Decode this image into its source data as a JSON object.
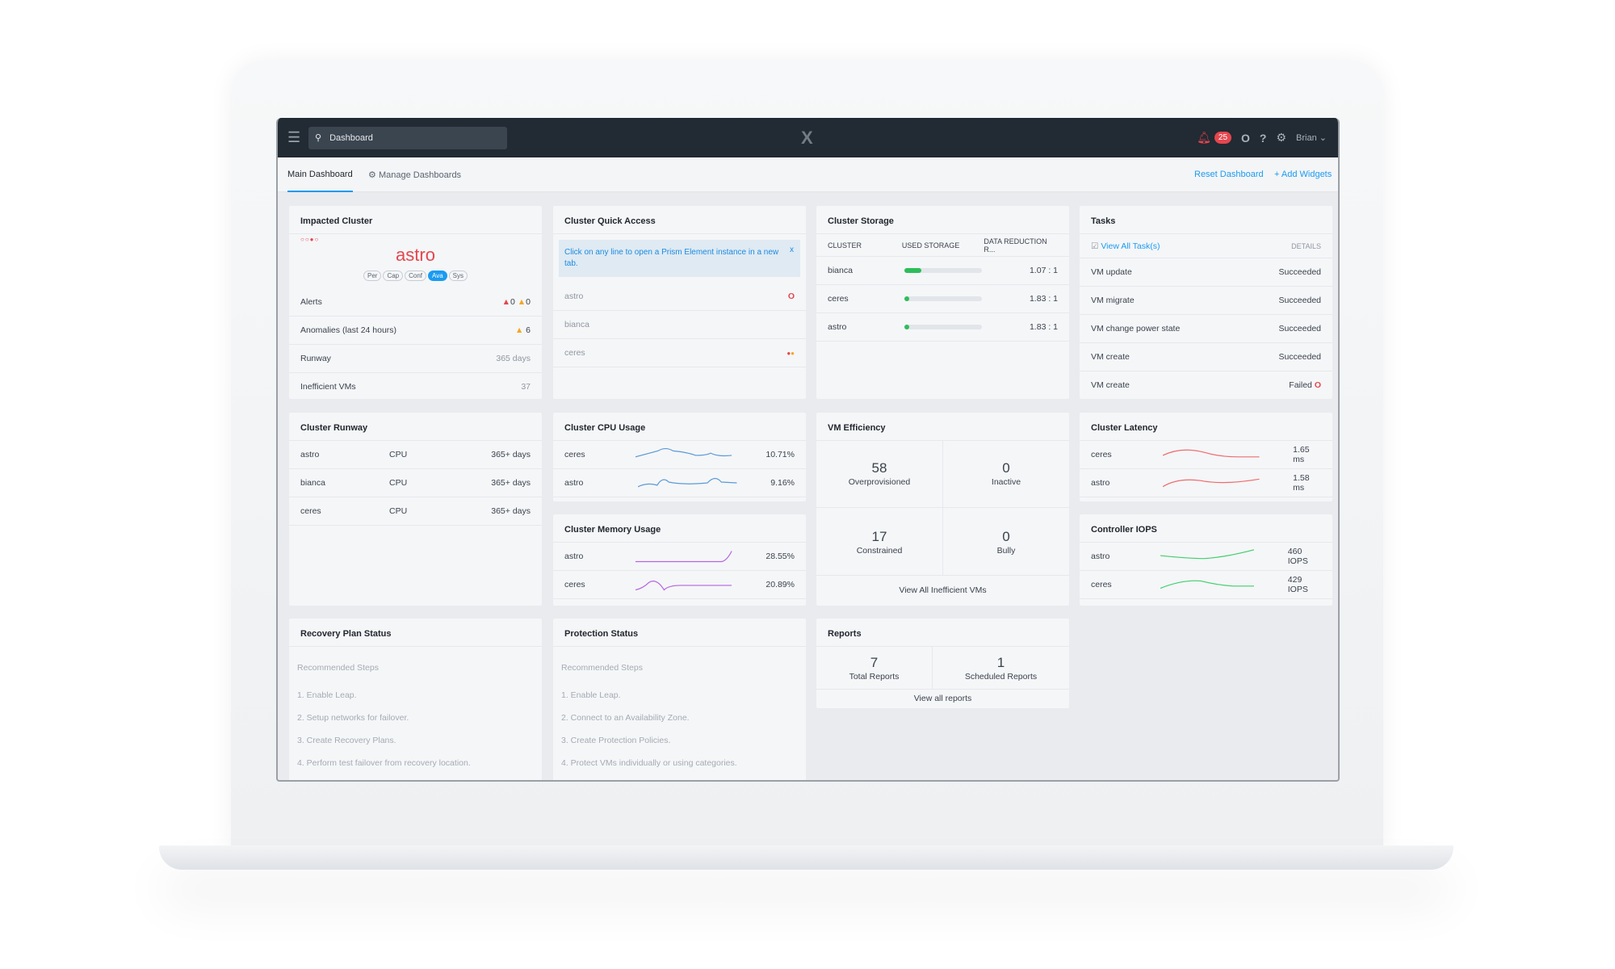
{
  "topbar": {
    "search_value": "Dashboard",
    "logo": "X",
    "alert_count": "25",
    "user": "Brian"
  },
  "tabs": {
    "main": "Main Dashboard",
    "manage": "Manage Dashboards",
    "reset": "Reset Dashboard",
    "add": "Add Widgets"
  },
  "impacted": {
    "title": "Impacted Cluster",
    "cluster": "astro",
    "pills": [
      "Per",
      "Cap",
      "Conf",
      "Ava",
      "Sys"
    ],
    "active_pill": "Ava",
    "rows": [
      {
        "label": "Alerts",
        "critical": "0",
        "warning": "0"
      },
      {
        "label": "Anomalies (last 24 hours)",
        "value": "6"
      },
      {
        "label": "Runway",
        "value": "365 days"
      },
      {
        "label": "Inefficient VMs",
        "value": "37"
      }
    ]
  },
  "quick": {
    "title": "Cluster Quick Access",
    "info": "Click on any line to open a Prism Element instance in a new tab.",
    "close": "x",
    "clusters": [
      "astro",
      "bianca",
      "ceres"
    ]
  },
  "storage": {
    "title": "Cluster Storage",
    "headers": [
      "CLUSTER",
      "USED STORAGE",
      "DATA REDUCTION R..."
    ],
    "rows": [
      {
        "name": "bianca",
        "used_pct": 22,
        "ratio": "1.07 : 1"
      },
      {
        "name": "ceres",
        "used_pct": 5,
        "ratio": "1.83 : 1"
      },
      {
        "name": "astro",
        "used_pct": 2,
        "ratio": "1.83 : 1"
      }
    ]
  },
  "tasks": {
    "title": "Tasks",
    "view_all": "View All Task(s)",
    "details": "DETAILS",
    "rows": [
      {
        "name": "VM update",
        "status": "Succeeded"
      },
      {
        "name": "VM migrate",
        "status": "Succeeded"
      },
      {
        "name": "VM change power state",
        "status": "Succeeded"
      },
      {
        "name": "VM create",
        "status": "Succeeded"
      },
      {
        "name": "VM create",
        "status": "Failed"
      }
    ]
  },
  "runway": {
    "title": "Cluster Runway",
    "rows": [
      {
        "name": "astro",
        "resource": "CPU",
        "value": "365+ days"
      },
      {
        "name": "bianca",
        "resource": "CPU",
        "value": "365+ days"
      },
      {
        "name": "ceres",
        "resource": "CPU",
        "value": "365+ days"
      }
    ]
  },
  "cpu": {
    "title": "Cluster CPU Usage",
    "color": "#5b9bd5",
    "rows": [
      {
        "name": "ceres",
        "value": "10.71%"
      },
      {
        "name": "astro",
        "value": "9.16%"
      }
    ]
  },
  "memory": {
    "title": "Cluster Memory Usage",
    "color": "#b565e0",
    "rows": [
      {
        "name": "astro",
        "value": "28.55%"
      },
      {
        "name": "ceres",
        "value": "20.89%"
      }
    ]
  },
  "efficiency": {
    "title": "VM Efficiency",
    "cells": [
      {
        "n": "58",
        "label": "Overprovisioned"
      },
      {
        "n": "0",
        "label": "Inactive"
      },
      {
        "n": "17",
        "label": "Constrained"
      },
      {
        "n": "0",
        "label": "Bully"
      }
    ],
    "link": "View All Inefficient VMs"
  },
  "latency": {
    "title": "Cluster Latency",
    "color": "#ee6b6e",
    "rows": [
      {
        "name": "ceres",
        "value": "1.65 ms"
      },
      {
        "name": "astro",
        "value": "1.58 ms"
      }
    ]
  },
  "iops": {
    "title": "Controller IOPS",
    "color": "#3fcf6a",
    "rows": [
      {
        "name": "astro",
        "value": "460 IOPS"
      },
      {
        "name": "ceres",
        "value": "429 IOPS"
      }
    ]
  },
  "recovery": {
    "title": "Recovery Plan Status",
    "sub": "Recommended Steps",
    "steps": [
      "1. Enable Leap.",
      "2. Setup networks for failover.",
      "3. Create Recovery Plans.",
      "4. Perform test failover from recovery location."
    ]
  },
  "protection": {
    "title": "Protection Status",
    "sub": "Recommended Steps",
    "steps": [
      "1. Enable Leap.",
      "2. Connect to an Availability Zone.",
      "3. Create Protection Policies.",
      "4. Protect VMs individually or using categories."
    ]
  },
  "reports": {
    "title": "Reports",
    "cells": [
      {
        "n": "7",
        "label": "Total Reports"
      },
      {
        "n": "1",
        "label": "Scheduled Reports"
      }
    ],
    "link": "View all reports"
  }
}
